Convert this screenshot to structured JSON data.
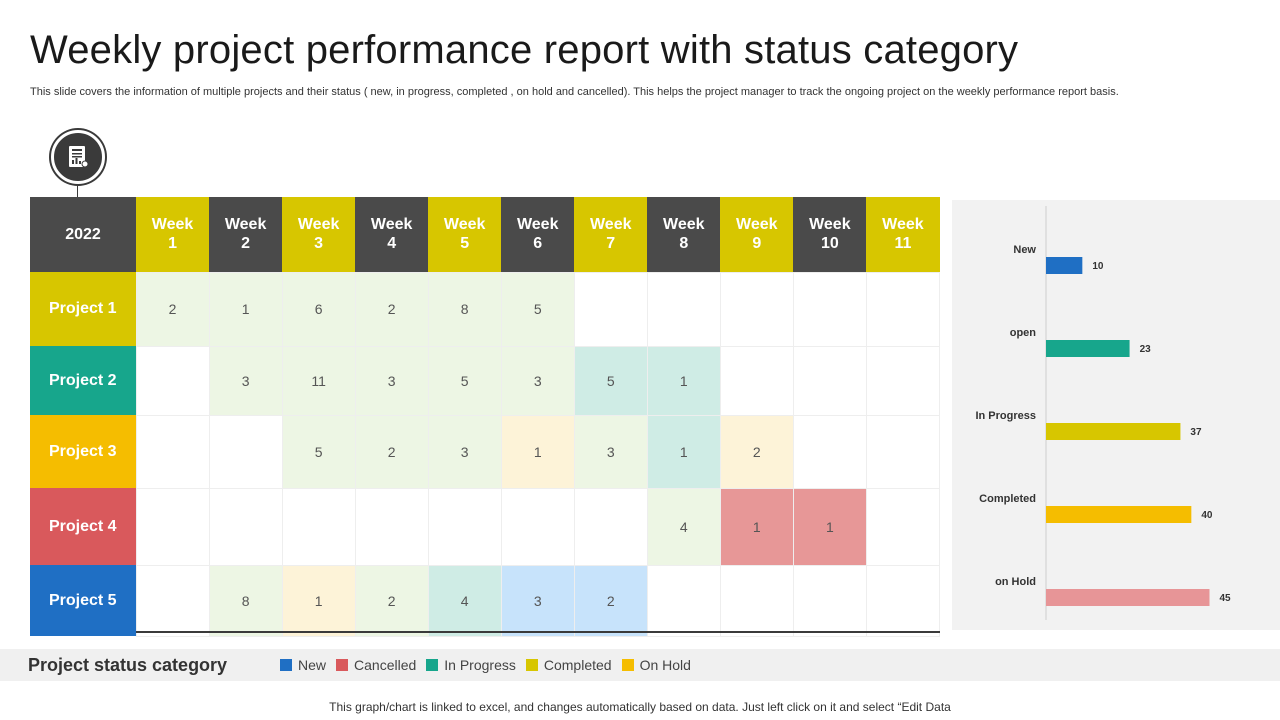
{
  "header": {
    "title": "Weekly project performance report with status category",
    "subtitle": "This slide covers the information of multiple  projects and their status ( new, in progress, completed , on hold and cancelled). This helps the project manager to track the ongoing project on the weekly performance report basis."
  },
  "icon": "report-document-icon",
  "colors": {
    "new": "#1f6fc4",
    "cancelled": "#d9595c",
    "in_progress": "#17a68c",
    "completed": "#d7c600",
    "on_hold": "#f5bd00",
    "header_dark": "#4a4a4a",
    "header_gold": "#d7c600"
  },
  "table": {
    "year": "2022",
    "weeks": [
      "Week\n1",
      "Week\n2",
      "Week\n3",
      "Week\n4",
      "Week\n5",
      "Week\n6",
      "Week\n7",
      "Week\n8",
      "Week\n9",
      "Week\n10",
      "Week\n11"
    ],
    "projects": [
      {
        "name": "Project 1",
        "color": "#d7c600",
        "cells": [
          {
            "v": "2",
            "bg": "#edf6e4"
          },
          {
            "v": "1",
            "bg": "#edf6e4"
          },
          {
            "v": "6",
            "bg": "#edf6e4"
          },
          {
            "v": "2",
            "bg": "#edf6e4"
          },
          {
            "v": "8",
            "bg": "#edf6e4"
          },
          {
            "v": "5",
            "bg": "#edf6e4"
          },
          {
            "v": "",
            "bg": "#ffffff"
          },
          {
            "v": "",
            "bg": "#ffffff"
          },
          {
            "v": "",
            "bg": "#ffffff"
          },
          {
            "v": "",
            "bg": "#ffffff"
          },
          {
            "v": "",
            "bg": "#ffffff"
          }
        ]
      },
      {
        "name": "Project 2",
        "color": "#17a68c",
        "cells": [
          {
            "v": "",
            "bg": "#ffffff"
          },
          {
            "v": "3",
            "bg": "#edf6e4"
          },
          {
            "v": "11",
            "bg": "#edf6e4"
          },
          {
            "v": "3",
            "bg": "#edf6e4"
          },
          {
            "v": "5",
            "bg": "#edf6e4"
          },
          {
            "v": "3",
            "bg": "#edf6e4"
          },
          {
            "v": "5",
            "bg": "#cfece5"
          },
          {
            "v": "1",
            "bg": "#cfece5"
          },
          {
            "v": "",
            "bg": "#ffffff"
          },
          {
            "v": "",
            "bg": "#ffffff"
          },
          {
            "v": "",
            "bg": "#ffffff"
          }
        ]
      },
      {
        "name": "Project 3",
        "color": "#f5bd00",
        "cells": [
          {
            "v": "",
            "bg": "#ffffff"
          },
          {
            "v": "",
            "bg": "#ffffff"
          },
          {
            "v": "5",
            "bg": "#edf6e4"
          },
          {
            "v": "2",
            "bg": "#edf6e4"
          },
          {
            "v": "3",
            "bg": "#edf6e4"
          },
          {
            "v": "1",
            "bg": "#fdf3d8"
          },
          {
            "v": "3",
            "bg": "#edf6e4"
          },
          {
            "v": "1",
            "bg": "#cfece5"
          },
          {
            "v": "2",
            "bg": "#fdf3d8"
          },
          {
            "v": "",
            "bg": "#ffffff"
          },
          {
            "v": "",
            "bg": "#ffffff"
          }
        ]
      },
      {
        "name": "Project 4",
        "color": "#d9595c",
        "cells": [
          {
            "v": "",
            "bg": "#ffffff"
          },
          {
            "v": "",
            "bg": "#ffffff"
          },
          {
            "v": "",
            "bg": "#ffffff"
          },
          {
            "v": "",
            "bg": "#ffffff"
          },
          {
            "v": "",
            "bg": "#ffffff"
          },
          {
            "v": "",
            "bg": "#ffffff"
          },
          {
            "v": "",
            "bg": "#ffffff"
          },
          {
            "v": "4",
            "bg": "#edf6e4"
          },
          {
            "v": "1",
            "bg": "#e79797"
          },
          {
            "v": "1",
            "bg": "#e79797"
          },
          {
            "v": "",
            "bg": "#ffffff"
          }
        ]
      },
      {
        "name": "Project 5",
        "color": "#1f6fc4",
        "cells": [
          {
            "v": "",
            "bg": "#ffffff"
          },
          {
            "v": "8",
            "bg": "#edf6e4"
          },
          {
            "v": "1",
            "bg": "#fdf3d8"
          },
          {
            "v": "2",
            "bg": "#edf6e4"
          },
          {
            "v": "4",
            "bg": "#cfece5"
          },
          {
            "v": "3",
            "bg": "#c7e3fb"
          },
          {
            "v": "2",
            "bg": "#c7e3fb"
          },
          {
            "v": "",
            "bg": "#ffffff"
          },
          {
            "v": "",
            "bg": "#ffffff"
          },
          {
            "v": "",
            "bg": "#ffffff"
          },
          {
            "v": "",
            "bg": "#ffffff"
          }
        ]
      }
    ]
  },
  "chart_data": {
    "type": "bar",
    "orientation": "horizontal",
    "categories": [
      "New",
      "open",
      "In Progress",
      "Completed",
      "on Hold"
    ],
    "values": [
      10,
      23,
      37,
      40,
      45
    ],
    "colors": [
      "#1f6fc4",
      "#17a68c",
      "#d7c600",
      "#f5bd00",
      "#e79597"
    ],
    "xlim": [
      0,
      60
    ],
    "grid": false,
    "title": "",
    "xlabel": "",
    "ylabel": ""
  },
  "legend": {
    "title": "Project status category",
    "items": [
      {
        "label": "New",
        "color": "#1f6fc4"
      },
      {
        "label": "Cancelled",
        "color": "#d9595c"
      },
      {
        "label": "In Progress",
        "color": "#17a68c"
      },
      {
        "label": "Completed",
        "color": "#d7c600"
      },
      {
        "label": "On Hold",
        "color": "#f5bd00"
      }
    ]
  },
  "footer": {
    "note": "This graph/chart is linked to excel,  and changes automatically based on data. Just left click on it and select “Edit Data"
  }
}
